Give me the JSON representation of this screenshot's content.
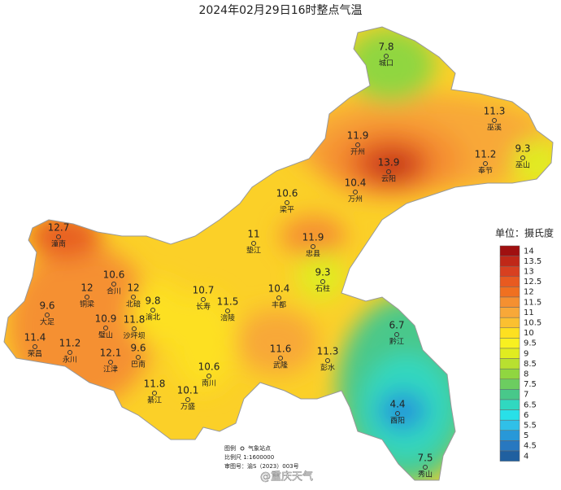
{
  "title": "2024年02月29日16时整点气温",
  "stations": [
    {
      "name": "城口",
      "value": 7.8
    },
    {
      "name": "巫溪",
      "value": 11.3
    },
    {
      "name": "开州",
      "value": 11.9
    },
    {
      "name": "云阳",
      "value": 13.9
    },
    {
      "name": "奉节",
      "value": 11.2
    },
    {
      "name": "巫山",
      "value": 9.3
    },
    {
      "name": "万州",
      "value": 10.4
    },
    {
      "name": "梁平",
      "value": 10.6
    },
    {
      "name": "垫江",
      "value": 11
    },
    {
      "name": "忠县",
      "value": 11.9
    },
    {
      "name": "潼南",
      "value": 12.7
    },
    {
      "name": "合川",
      "value": 10.6
    },
    {
      "name": "铜梁",
      "value": 12
    },
    {
      "name": "北碚",
      "value": 12
    },
    {
      "name": "石柱",
      "value": 9.3
    },
    {
      "name": "渝北",
      "value": 9.8
    },
    {
      "name": "长寿",
      "value": 10.7
    },
    {
      "name": "涪陵",
      "value": 11.5
    },
    {
      "name": "丰都",
      "value": 10.4
    },
    {
      "name": "大足",
      "value": 9.6
    },
    {
      "name": "璧山",
      "value": 10.9
    },
    {
      "name": "沙坪坝",
      "value": 11.8
    },
    {
      "name": "荣昌",
      "value": 11.4
    },
    {
      "name": "永川",
      "value": 11.2
    },
    {
      "name": "江津",
      "value": 12.1
    },
    {
      "name": "巴南",
      "value": 9.6
    },
    {
      "name": "黔江",
      "value": 6.7
    },
    {
      "name": "武隆",
      "value": 11.6
    },
    {
      "name": "彭水",
      "value": 11.3
    },
    {
      "name": "南川",
      "value": 10.6
    },
    {
      "name": "万盛",
      "value": 10.1
    },
    {
      "name": "綦江",
      "value": 11.8
    },
    {
      "name": "酉阳",
      "value": 4.4
    },
    {
      "name": "秀山",
      "value": 7.5
    }
  ],
  "legend": {
    "title": "单位：摄氏度",
    "levels": [
      {
        "value": 14,
        "color": "#a01010"
      },
      {
        "value": 13.5,
        "color": "#c02818"
      },
      {
        "value": 13,
        "color": "#d84020"
      },
      {
        "value": 12.5,
        "color": "#e85a20"
      },
      {
        "value": 12,
        "color": "#f07020"
      },
      {
        "value": 11.5,
        "color": "#f59030"
      },
      {
        "value": 11,
        "color": "#f8a838"
      },
      {
        "value": 10.5,
        "color": "#fbc030"
      },
      {
        "value": 10,
        "color": "#fde020"
      },
      {
        "value": 9.5,
        "color": "#f8f020"
      },
      {
        "value": 9,
        "color": "#e0ec20"
      },
      {
        "value": 8.5,
        "color": "#b8e030"
      },
      {
        "value": 8,
        "color": "#90d640"
      },
      {
        "value": 7.5,
        "color": "#6ccd60"
      },
      {
        "value": 7,
        "color": "#48c88a"
      },
      {
        "value": 6.5,
        "color": "#30d8c0"
      },
      {
        "value": 6,
        "color": "#28e0e8"
      },
      {
        "value": 5.5,
        "color": "#30c0e8"
      },
      {
        "value": 5,
        "color": "#2898d8"
      },
      {
        "value": 4.5,
        "color": "#2878c0"
      },
      {
        "value": 4,
        "color": "#2060a0"
      }
    ]
  },
  "notes": {
    "legend_label": "图例",
    "station_label": "气象站点",
    "scale": "比例尺  1:1600000",
    "approval": "审图号：渝S（2023）003号"
  },
  "watermark": "@重庆天气"
}
